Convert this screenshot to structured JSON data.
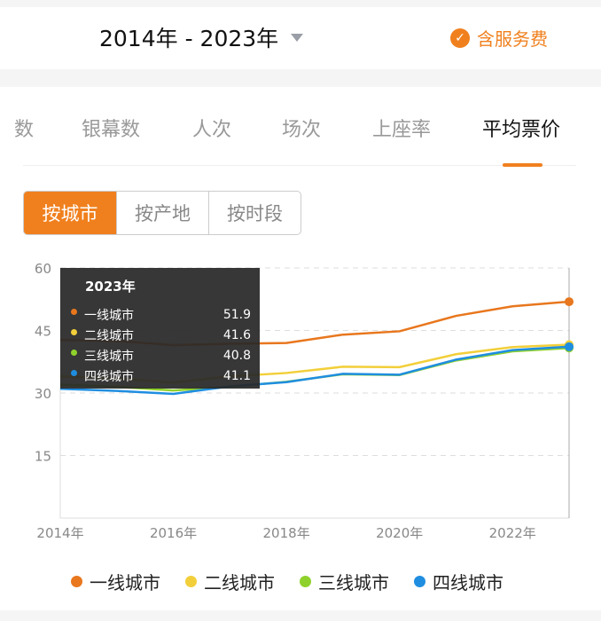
{
  "header": {
    "date_range": "2014年 - 2023年",
    "service_fee_label": "含服务费",
    "service_fee_checked": true
  },
  "tabs": [
    {
      "label": "数"
    },
    {
      "label": "银幕数"
    },
    {
      "label": "人次"
    },
    {
      "label": "场次"
    },
    {
      "label": "上座率"
    },
    {
      "label": "平均票价",
      "active": true
    }
  ],
  "segments": [
    {
      "label": "按城市",
      "active": true
    },
    {
      "label": "按产地"
    },
    {
      "label": "按时段"
    }
  ],
  "tooltip": {
    "title": "2023年",
    "rows": [
      {
        "name": "一线城市",
        "value": "51.9"
      },
      {
        "name": "二线城市",
        "value": "41.6"
      },
      {
        "name": "三线城市",
        "value": "40.8"
      },
      {
        "name": "四线城市",
        "value": "41.1"
      }
    ]
  },
  "accent": "#f0801e",
  "chart_data": {
    "type": "line",
    "x": [
      2014,
      2015,
      2016,
      2017,
      2018,
      2019,
      2020,
      2021,
      2022,
      2023
    ],
    "x_tick_labels": [
      "2014年",
      "2016年",
      "2018年",
      "2020年",
      "2022年"
    ],
    "y_ticks": [
      15,
      30,
      45,
      60
    ],
    "ylim": [
      0,
      60
    ],
    "grid": true,
    "legend": "bottom",
    "series": [
      {
        "name": "一线城市",
        "color": "#e8771e",
        "values": [
          42.7,
          42.5,
          41.5,
          41.8,
          42,
          44,
          44.8,
          48.5,
          50.8,
          51.9
        ]
      },
      {
        "name": "二线城市",
        "color": "#f2cf3a",
        "values": [
          34,
          33.5,
          32.5,
          34,
          34.8,
          36.3,
          36.2,
          39.3,
          41,
          41.6
        ]
      },
      {
        "name": "三线城市",
        "color": "#8fd12c",
        "values": [
          32,
          31.5,
          30.6,
          31.5,
          32.7,
          34.5,
          34.3,
          37.8,
          40,
          40.8
        ]
      },
      {
        "name": "四线城市",
        "color": "#1f8ee0",
        "values": [
          31,
          30.5,
          29.8,
          31.6,
          32.6,
          34.6,
          34.4,
          38,
          40.3,
          41.1
        ]
      }
    ]
  }
}
